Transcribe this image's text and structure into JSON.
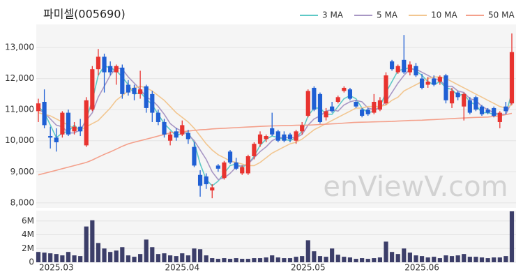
{
  "chart_data": {
    "type": "candlestick",
    "title": "파미셀(005690)",
    "watermark": "enViewV.com",
    "categories": [
      null,
      null,
      null,
      "2025.03",
      null,
      null,
      null,
      null,
      null,
      null,
      null,
      null,
      null,
      null,
      null,
      null,
      null,
      null,
      null,
      null,
      null,
      null,
      null,
      null,
      "2025.04",
      null,
      null,
      null,
      null,
      null,
      null,
      null,
      null,
      null,
      null,
      null,
      null,
      null,
      null,
      null,
      null,
      null,
      null,
      null,
      null,
      "2025.05",
      null,
      null,
      null,
      null,
      null,
      null,
      null,
      null,
      null,
      null,
      null,
      null,
      null,
      null,
      null,
      null,
      null,
      null,
      "2025.06",
      null,
      null,
      null,
      null,
      null,
      null,
      null,
      null,
      null,
      null,
      null,
      null,
      null,
      null,
      null
    ],
    "open": [
      10950,
      11250,
      10150,
      10100,
      10200,
      10900,
      10300,
      10450,
      9850,
      11000,
      12300,
      12700,
      12400,
      12200,
      12350,
      11800,
      11700,
      11500,
      11750,
      11500,
      10900,
      10600,
      10000,
      10300,
      10200,
      10250,
      9800,
      8900,
      8850,
      8400,
      9200,
      8800,
      9650,
      9300,
      8950,
      8950,
      9500,
      9900,
      10050,
      10400,
      10300,
      10200,
      10200,
      10000,
      10300,
      10800,
      11700,
      11500,
      10750,
      11100,
      11250,
      11600,
      11650,
      11250,
      11000,
      11000,
      10900,
      11000,
      11200,
      12550,
      12200,
      12600,
      12200,
      12400,
      12000,
      11800,
      12000,
      11900,
      12100,
      11200,
      11550,
      11100,
      11300,
      11400,
      11100,
      11000,
      11050,
      10600,
      11100,
      11200
    ],
    "high": [
      11350,
      11650,
      10450,
      10400,
      10950,
      11000,
      10600,
      10700,
      11400,
      12400,
      12950,
      12800,
      12550,
      12450,
      12450,
      11950,
      11800,
      12250,
      11800,
      11600,
      11000,
      10700,
      10300,
      10400,
      10650,
      10350,
      9950,
      9050,
      8950,
      8600,
      9250,
      9350,
      9700,
      9450,
      9200,
      9550,
      9950,
      10300,
      10200,
      10900,
      10350,
      10300,
      10250,
      10350,
      10600,
      11650,
      11750,
      11550,
      11050,
      11250,
      11450,
      11750,
      11700,
      11300,
      11050,
      11050,
      11500,
      11400,
      12200,
      12600,
      12450,
      13400,
      12550,
      12500,
      12150,
      12050,
      12100,
      12100,
      12150,
      11700,
      11600,
      11550,
      11400,
      11450,
      11150,
      11050,
      11100,
      10950,
      11250,
      13450
    ],
    "low": [
      10600,
      10400,
      9750,
      9650,
      10100,
      10150,
      10200,
      10150,
      9800,
      10950,
      12100,
      11550,
      12100,
      11800,
      11350,
      11450,
      11300,
      11350,
      10900,
      10600,
      10500,
      10100,
      9850,
      10000,
      10150,
      9900,
      9150,
      8200,
      8450,
      8150,
      9000,
      8750,
      9250,
      9050,
      8900,
      8900,
      9400,
      9800,
      9950,
      10150,
      9950,
      9950,
      9950,
      9900,
      10200,
      10750,
      10950,
      10550,
      10650,
      10900,
      11200,
      11550,
      11300,
      11050,
      10750,
      10800,
      10850,
      10950,
      11150,
      12250,
      12150,
      12150,
      12100,
      12050,
      11650,
      11700,
      11750,
      11800,
      11200,
      11050,
      11300,
      10650,
      10850,
      10950,
      10800,
      10850,
      10750,
      10400,
      10850,
      11150
    ],
    "close": [
      11200,
      10500,
      10100,
      9950,
      10900,
      10200,
      10450,
      10300,
      11300,
      12300,
      12700,
      12200,
      12200,
      12400,
      11500,
      11550,
      11500,
      11650,
      11050,
      10900,
      10600,
      10200,
      10200,
      10100,
      10500,
      10050,
      9200,
      8550,
      8600,
      8500,
      9100,
      9300,
      9300,
      9100,
      9150,
      9500,
      9900,
      10200,
      10150,
      10200,
      10000,
      10000,
      10050,
      10300,
      10500,
      11600,
      11000,
      10600,
      10950,
      10950,
      11400,
      11700,
      11350,
      11100,
      10800,
      10850,
      11250,
      11300,
      12100,
      12300,
      12400,
      12200,
      12450,
      12100,
      11700,
      11900,
      11800,
      12050,
      11300,
      11600,
      11400,
      11500,
      10900,
      11000,
      10850,
      10900,
      10800,
      10900,
      10950,
      12850
    ],
    "up_color": "#e8332f",
    "down_color": "#1f5fd4",
    "ylim": [
      7840,
      13740
    ],
    "yticks": [
      {
        "value": 8000,
        "label": "8,000"
      },
      {
        "value": 9000,
        "label": "9,000"
      },
      {
        "value": 10000,
        "label": "10,000"
      },
      {
        "value": 11000,
        "label": "11,000"
      },
      {
        "value": 12000,
        "label": "12,000"
      },
      {
        "value": 13000,
        "label": "13,000"
      }
    ],
    "grid": true,
    "legend": "top-right",
    "series": [
      {
        "name": "3 MA",
        "color": "#5ec9c6",
        "values": [
          11100,
          10900,
          10500,
          10100,
          10250,
          10300,
          10500,
          10300,
          10700,
          11300,
          12100,
          12400,
          12350,
          12250,
          12050,
          11800,
          11500,
          11550,
          11350,
          11150,
          10850,
          10550,
          10350,
          10150,
          10250,
          10250,
          9950,
          9250,
          8750,
          8550,
          8700,
          8950,
          9200,
          9250,
          9150,
          9250,
          9500,
          9850,
          10050,
          10150,
          10100,
          10050,
          10000,
          10100,
          10300,
          10800,
          11050,
          11050,
          10850,
          10850,
          11100,
          11350,
          11450,
          11350,
          11050,
          10900,
          10950,
          11100,
          11550,
          11900,
          12250,
          12300,
          12350,
          12250,
          12100,
          11900,
          11800,
          11900,
          11700,
          11650,
          11450,
          11500,
          11250,
          11150,
          10900,
          10900,
          10850,
          10850,
          10850,
          11550
        ]
      },
      {
        "name": "5 MA",
        "color": "#a897c4",
        "values": [
          11000,
          10900,
          10700,
          10500,
          10450,
          10250,
          10250,
          10350,
          10650,
          10900,
          11400,
          11750,
          12100,
          12350,
          12300,
          12050,
          11850,
          11650,
          11400,
          11300,
          11100,
          10850,
          10550,
          10400,
          10300,
          10200,
          10000,
          9700,
          9400,
          9000,
          8750,
          8800,
          8950,
          9150,
          9200,
          9250,
          9450,
          9650,
          9800,
          10000,
          10100,
          10100,
          10100,
          10100,
          10200,
          10500,
          10700,
          10800,
          10950,
          11000,
          10950,
          11150,
          11250,
          11300,
          11250,
          11050,
          11000,
          11050,
          11250,
          11550,
          11850,
          12100,
          12300,
          12300,
          12200,
          12100,
          12000,
          11950,
          11750,
          11750,
          11600,
          11550,
          11350,
          11300,
          11100,
          11000,
          10900,
          10850,
          10850,
          11250
        ]
      },
      {
        "name": "10 MA",
        "color": "#f2c690",
        "values": [
          10900,
          10850,
          10800,
          10700,
          10600,
          10500,
          10400,
          10350,
          10450,
          10550,
          10650,
          10850,
          11050,
          11300,
          11450,
          11600,
          11700,
          11750,
          11700,
          11600,
          11450,
          11300,
          11100,
          10900,
          10750,
          10600,
          10400,
          10150,
          9900,
          9700,
          9550,
          9450,
          9350,
          9300,
          9250,
          9200,
          9200,
          9300,
          9450,
          9600,
          9700,
          9800,
          9900,
          9950,
          10050,
          10200,
          10350,
          10450,
          10550,
          10650,
          10750,
          10850,
          10950,
          11050,
          11050,
          11100,
          11100,
          11100,
          11150,
          11300,
          11400,
          11600,
          11700,
          11800,
          11900,
          12000,
          12050,
          12050,
          12000,
          11900,
          11800,
          11700,
          11600,
          11500,
          11400,
          11300,
          11200,
          11100,
          11050,
          11150
        ]
      },
      {
        "name": "50 MA",
        "color": "#f4a08b",
        "values": [
          8900,
          8950,
          9000,
          9050,
          9100,
          9150,
          9200,
          9250,
          9300,
          9380,
          9470,
          9560,
          9640,
          9730,
          9820,
          9900,
          9950,
          10000,
          10050,
          10100,
          10150,
          10200,
          10250,
          10270,
          10290,
          10310,
          10330,
          10350,
          10360,
          10380,
          10390,
          10400,
          10410,
          10420,
          10430,
          10440,
          10450,
          10460,
          10470,
          10475,
          10480,
          10485,
          10490,
          10495,
          10500,
          10500,
          10510,
          10520,
          10530,
          10540,
          10550,
          10565,
          10580,
          10590,
          10595,
          10600,
          10605,
          10610,
          10615,
          10620,
          10630,
          10640,
          10650,
          10655,
          10660,
          10670,
          10680,
          10690,
          10700,
          10710,
          10720,
          10730,
          10740,
          10750,
          10755,
          10760,
          10780,
          10800,
          10840,
          10880
        ]
      }
    ],
    "volume": {
      "color": "#3c3e69",
      "ylim": [
        0,
        7500000
      ],
      "yticks": [
        0,
        {
          "value": 2000000,
          "label": "2M"
        },
        {
          "value": 4000000,
          "label": "4M"
        },
        {
          "value": 6000000,
          "label": "6M"
        }
      ],
      "values": [
        1500000,
        1400000,
        1300000,
        1200000,
        1000000,
        1500000,
        1000000,
        900000,
        5200000,
        6100000,
        2800000,
        2000000,
        1500000,
        1700000,
        2200000,
        1000000,
        800000,
        1200000,
        3300000,
        2200000,
        1200000,
        1300000,
        1000000,
        900000,
        1300000,
        1000000,
        2000000,
        1900000,
        1000000,
        600000,
        500000,
        600000,
        500000,
        600000,
        500000,
        500000,
        600000,
        600000,
        700000,
        1000000,
        700000,
        600000,
        600000,
        800000,
        900000,
        3200000,
        1600000,
        900000,
        800000,
        2000000,
        1100000,
        800000,
        700000,
        500000,
        600000,
        500000,
        600000,
        700000,
        3000000,
        1500000,
        1200000,
        2000000,
        1400000,
        1000000,
        900000,
        700000,
        800000,
        600000,
        1000000,
        900000,
        1000000,
        1200000,
        800000,
        800000,
        700000,
        600000,
        700000,
        700000,
        900000,
        7400000
      ]
    }
  }
}
